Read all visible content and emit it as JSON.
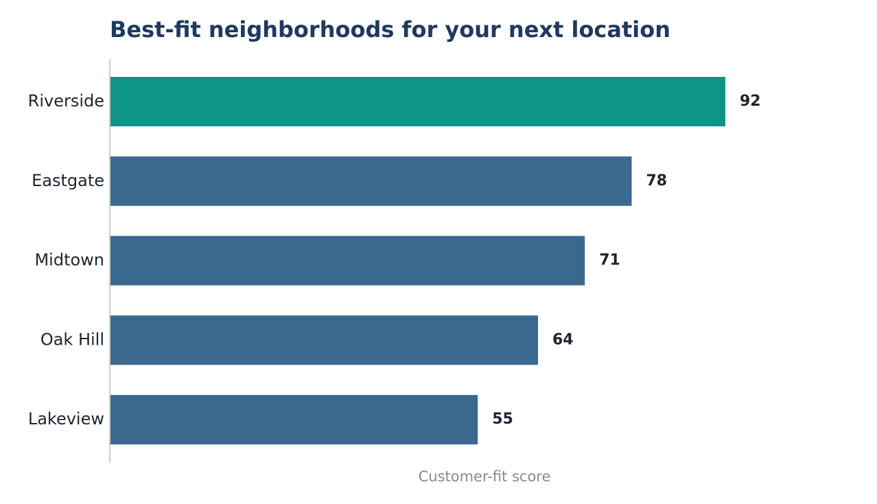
{
  "chart_data": {
    "type": "bar",
    "orientation": "horizontal",
    "title": "Best-fit neighborhoods for your next location",
    "xlabel": "Customer-fit score",
    "ylabel": "",
    "categories": [
      "Riverside",
      "Eastgate",
      "Midtown",
      "Oak Hill",
      "Lakeview"
    ],
    "values": [
      92,
      78,
      71,
      64,
      55
    ],
    "xlim": [
      0,
      112
    ],
    "grid": false,
    "data_labels": true,
    "colors": {
      "highlight": "#0e9488",
      "default": "#3b688f",
      "axis": "#cccccc"
    },
    "highlight_index": 0
  }
}
